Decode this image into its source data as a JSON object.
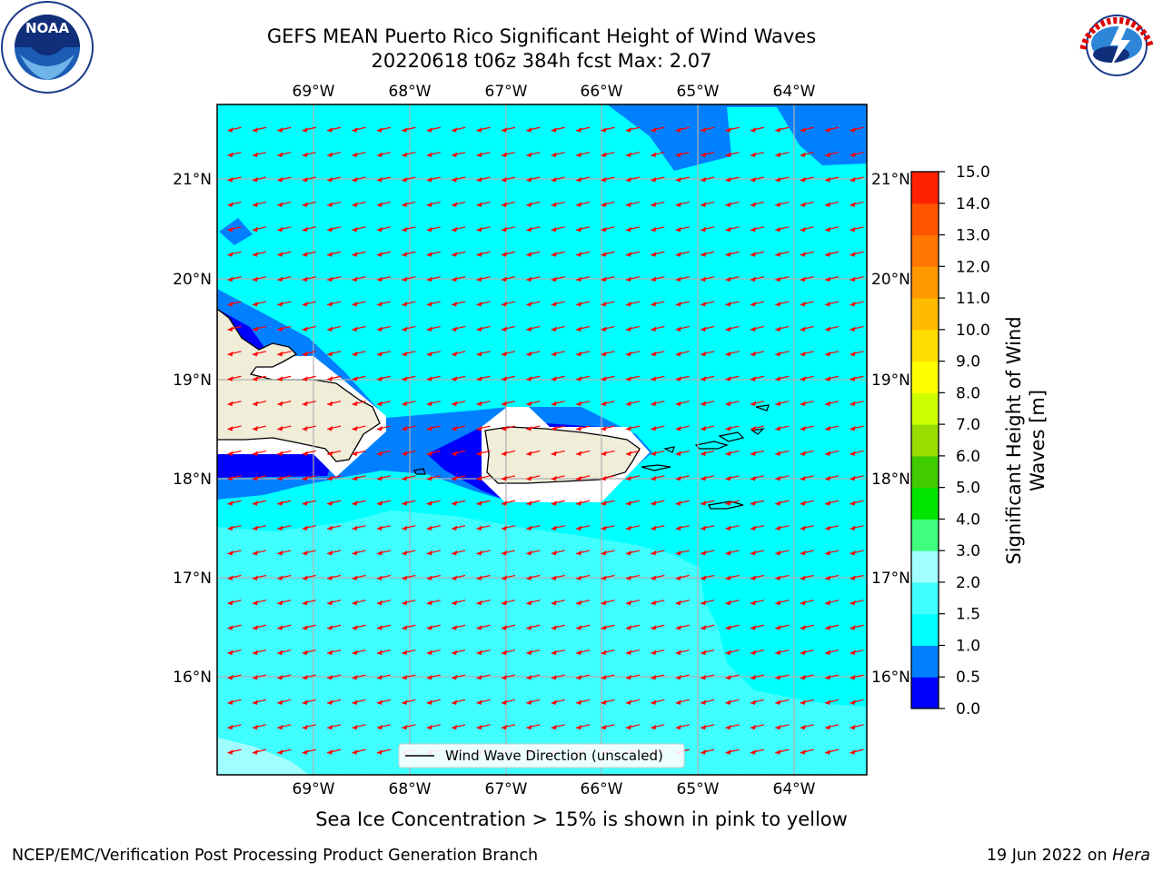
{
  "header": {
    "title_line1": "GEFS MEAN Puerto Rico Significant Height of Wind Waves",
    "title_line2": "20220618 t06z 384h fcst   Max: 2.07"
  },
  "map": {
    "lon_ticks": [
      "69°W",
      "68°W",
      "67°W",
      "66°W",
      "65°W",
      "64°W"
    ],
    "lat_ticks": [
      "21°N",
      "20°N",
      "19°N",
      "18°N",
      "17°N",
      "16°N"
    ],
    "legend_label": "Wind Wave Direction (unscaled)",
    "arrow_color": "#ff0000",
    "land_color": "#f0edd9",
    "ice_color": "#ffffff"
  },
  "colorbar": {
    "title_line1": "Significant Height of Wind",
    "title_line2": "Waves [m]",
    "ticks": [
      "0.0",
      "0.5",
      "1.0",
      "1.5",
      "2.0",
      "3.0",
      "4.0",
      "5.0",
      "6.0",
      "7.0",
      "8.0",
      "9.0",
      "10.0",
      "11.0",
      "12.0",
      "13.0",
      "14.0",
      "15.0"
    ],
    "colors": [
      "#0000ff",
      "#0080ff",
      "#00ffff",
      "#40ffff",
      "#a0ffff",
      "#40ff80",
      "#00e600",
      "#40cc00",
      "#99dd00",
      "#ccff00",
      "#ffff00",
      "#ffdd00",
      "#ffbb00",
      "#ff9900",
      "#ff7700",
      "#ff5500",
      "#ff2200"
    ]
  },
  "footer": {
    "note": "Sea Ice Concentration > 15% is shown in pink to yellow",
    "branch": "NCEP/EMC/Verification Post Processing Product Generation Branch",
    "date": "19 Jun 2022 on",
    "host": "Hera"
  },
  "logos": {
    "left": "NOAA",
    "right_text": "NATIONAL WEATHER SERVICE"
  }
}
